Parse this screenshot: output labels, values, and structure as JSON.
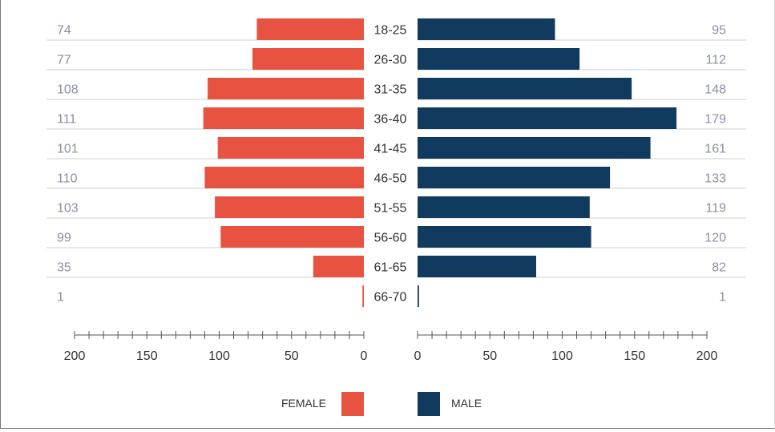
{
  "chart_data": {
    "type": "bar",
    "orientation": "horizontal",
    "layout": "population-pyramid",
    "categories": [
      "18-25",
      "26-30",
      "31-35",
      "36-40",
      "41-45",
      "46-50",
      "51-55",
      "56-60",
      "61-65",
      "66-70"
    ],
    "series": [
      {
        "name": "FEMALE",
        "color": "#e85341",
        "values": [
          74,
          77,
          108,
          111,
          101,
          110,
          103,
          99,
          35,
          1
        ]
      },
      {
        "name": "MALE",
        "color": "#103a5e",
        "values": [
          95,
          112,
          148,
          179,
          161,
          133,
          119,
          120,
          82,
          1
        ]
      }
    ],
    "xlim": [
      0,
      200
    ],
    "x_ticks": [
      "200",
      "150",
      "100",
      "50",
      "0"
    ],
    "x_ticks_right": [
      "0",
      "50",
      "100",
      "150",
      "200"
    ],
    "legend_position": "bottom-center",
    "grid": true
  }
}
